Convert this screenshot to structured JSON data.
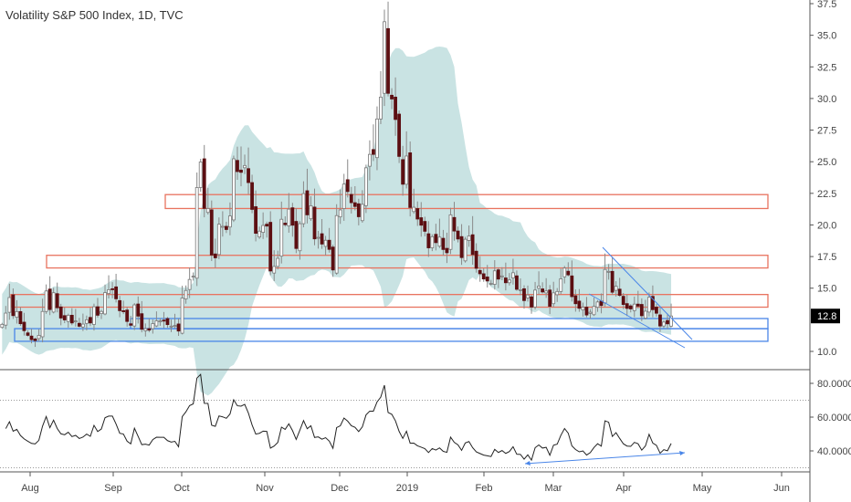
{
  "header": {
    "title": "Volatility S&P 500 Index, 1D, TVC"
  },
  "chart_data": [
    {
      "type": "candlestick",
      "title": "Volatility S&P 500 Index, 1D, TVC",
      "ylim": [
        9.5,
        37.8
      ],
      "y_ticks": [
        "37.5",
        "35.0",
        "32.5",
        "30.0",
        "27.5",
        "25.0",
        "22.5",
        "20.0",
        "17.5",
        "15.0",
        "10.0"
      ],
      "last_price_label": "12.8",
      "x_ticks": [
        "Aug",
        "Sep",
        "Oct",
        "Nov",
        "Dec",
        "2019",
        "Feb",
        "Mar",
        "Apr",
        "May",
        "Jun"
      ],
      "close": [
        12.14,
        13.03,
        14.26,
        12.83,
        13.15,
        12.19,
        11.64,
        11.27,
        10.93,
        10.85,
        11.27,
        13.16,
        14.78,
        13.31,
        14.64,
        13.45,
        12.64,
        12.49,
        12.86,
        12.25,
        12.41,
        11.99,
        12.16,
        12.5,
        12.25,
        13.53,
        12.86,
        13.16,
        14.65,
        14.88,
        14.88,
        14.16,
        13.22,
        13.14,
        12.37,
        12.07,
        13.68,
        12.79,
        11.75,
        11.8,
        11.68,
        12.2,
        12.42,
        12.41,
        12.41,
        12.12,
        12.0,
        12.05,
        11.61,
        14.22,
        14.82,
        15.69,
        15.95,
        22.96,
        24.98,
        21.31,
        21.3,
        17.62,
        17.4,
        20.06,
        19.89,
        19.64,
        20.71,
        25.23,
        24.22,
        24.16,
        24.7,
        23.35,
        21.23,
        19.34,
        19.51,
        19.96,
        19.91,
        16.36,
        16.72,
        17.36,
        20.45,
        20.02,
        21.25,
        19.98,
        18.14,
        20.1,
        22.48,
        20.8,
        21.52,
        18.9,
        19.02,
        18.49,
        18.79,
        18.07,
        16.44,
        20.74,
        21.19,
        23.23,
        22.64,
        21.76,
        21.46,
        20.65,
        21.63,
        24.52,
        25.58,
        25.58,
        28.38,
        30.11,
        36.07,
        30.41,
        29.96,
        28.34,
        25.42,
        23.22,
        25.45,
        21.38,
        21.4,
        20.47,
        19.98,
        19.5,
        18.19,
        19.07,
        18.6,
        19.04,
        18.06,
        17.8,
        20.8,
        19.52,
        18.89,
        17.42,
        18.87,
        19.13,
        17.66,
        16.57,
        16.14,
        15.73,
        15.57,
        15.38,
        16.37,
        15.72,
        15.97,
        15.43,
        15.65,
        16.22,
        14.91,
        14.88,
        14.02,
        14.46,
        13.51,
        14.85,
        15.17,
        14.7,
        14.78,
        13.57,
        14.63,
        14.74,
        15.74,
        16.59,
        16.05,
        14.33,
        13.77,
        13.41,
        13.5,
        12.88,
        13.1,
        13.56,
        13.91,
        13.63,
        16.48,
        16.33,
        14.68,
        15.15,
        14.43,
        13.71,
        13.4,
        13.36,
        13.74,
        13.58,
        12.82,
        13.18,
        14.28,
        13.3,
        13.02,
        12.01,
        12.32,
        12.18,
        12.8
      ],
      "overlay": "bollinger-band",
      "zones": [
        {
          "color": "#e8735f",
          "low": 21.3,
          "high": 22.4
        },
        {
          "color": "#e8735f",
          "low": 16.6,
          "high": 17.6
        },
        {
          "color": "#e8735f",
          "low": 13.5,
          "high": 14.5
        },
        {
          "color": "#4a86e8",
          "low": 11.8,
          "high": 12.6
        },
        {
          "color": "#4a86e8",
          "low": 10.8,
          "high": 11.8
        }
      ],
      "colors": {
        "up": "#ffffff",
        "down": "#5c0f12",
        "wick": "#8a8a8a",
        "band": "#c9e3e3",
        "zone_red": "#e8735f",
        "trend": "#4a86e8",
        "last_label_bg": "#000000"
      }
    },
    {
      "type": "line",
      "indicator": "oscillator",
      "ylim": [
        27,
        88
      ],
      "y_ticks": [
        "80.0000",
        "60.0000",
        "40.0000"
      ],
      "bands": [
        70,
        30
      ]
    }
  ]
}
